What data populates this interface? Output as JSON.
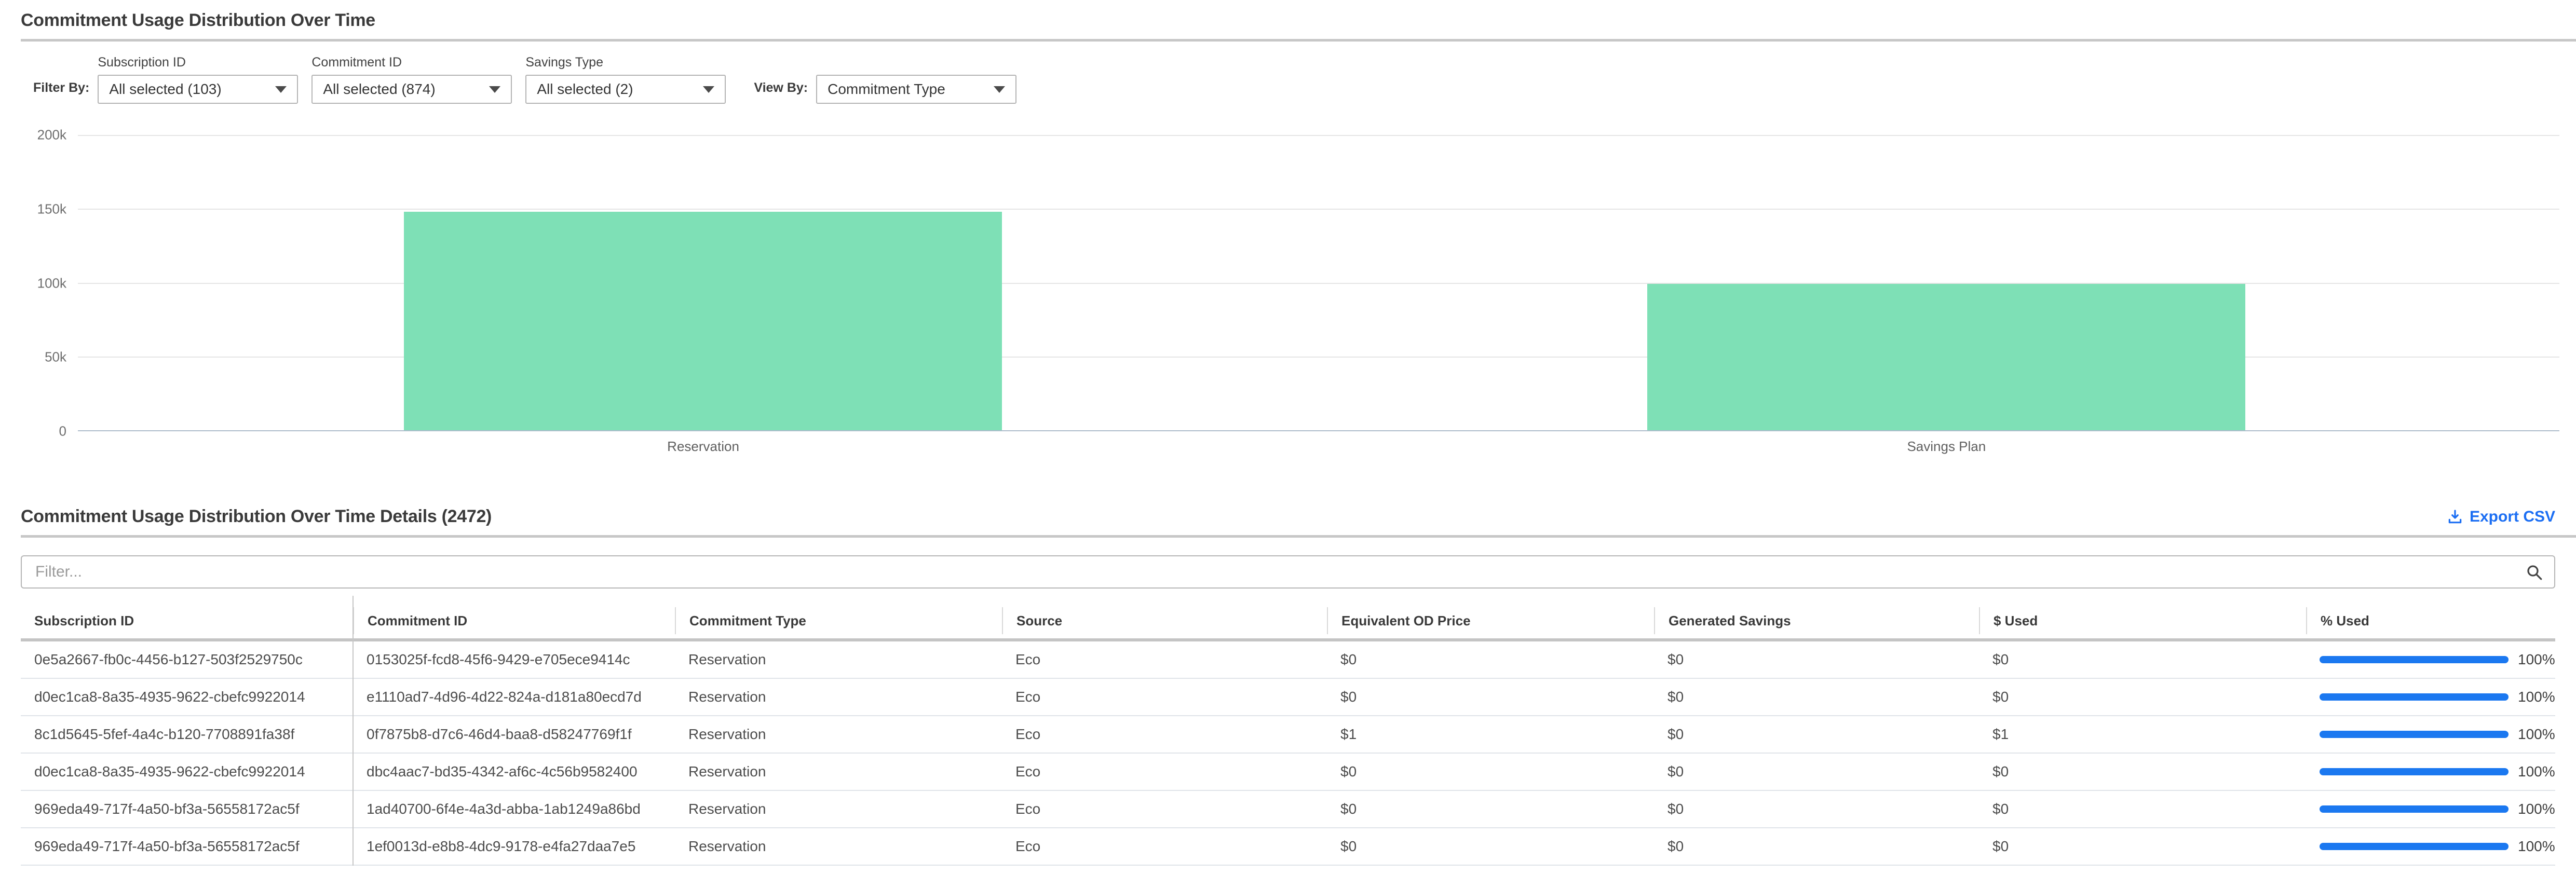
{
  "page": {
    "title": "Commitment Usage Distribution Over Time"
  },
  "filters": {
    "filter_by_label": "Filter By:",
    "view_by_label": "View By:",
    "dropdowns": [
      {
        "label": "Subscription ID",
        "value": "All selected (103)"
      },
      {
        "label": "Commitment ID",
        "value": "All selected (874)"
      },
      {
        "label": "Savings Type",
        "value": "All selected (2)"
      }
    ],
    "view_by": {
      "value": "Commitment Type"
    }
  },
  "chart_data": {
    "type": "bar",
    "categories": [
      "Reservation",
      "Savings Plan"
    ],
    "values": [
      148000,
      99000
    ],
    "title": "Commitment Usage Distribution Over Time",
    "xlabel": "",
    "ylabel": "",
    "ylim": [
      0,
      200000
    ],
    "yticks": [
      "200k",
      "150k",
      "100k",
      "50k",
      "0"
    ],
    "grid": true,
    "legend": "none",
    "bar_color": "#7ee0b6"
  },
  "details": {
    "title": "Commitment Usage Distribution Over Time Details (2472)",
    "export_label": "Export CSV",
    "filter_placeholder": "Filter...",
    "table": {
      "columns": [
        "Subscription ID",
        "Commitment ID",
        "Commitment Type",
        "Source",
        "Equivalent OD Price",
        "Generated Savings",
        "$ Used",
        "% Used"
      ],
      "rows": [
        {
          "sub": "0e5a2667-fb0c-4456-b127-503f2529750c",
          "cid": "0153025f-fcd8-45f6-9429-e705ece9414c",
          "type": "Reservation",
          "source": "Eco",
          "od": "$0",
          "savings": "$0",
          "used": "$0",
          "pct_label": "100%",
          "pct": 100
        },
        {
          "sub": "d0ec1ca8-8a35-4935-9622-cbefc9922014",
          "cid": "e1110ad7-4d96-4d22-824a-d181a80ecd7d",
          "type": "Reservation",
          "source": "Eco",
          "od": "$0",
          "savings": "$0",
          "used": "$0",
          "pct_label": "100%",
          "pct": 100
        },
        {
          "sub": "8c1d5645-5fef-4a4c-b120-7708891fa38f",
          "cid": "0f7875b8-d7c6-46d4-baa8-d58247769f1f",
          "type": "Reservation",
          "source": "Eco",
          "od": "$1",
          "savings": "$0",
          "used": "$1",
          "pct_label": "100%",
          "pct": 100
        },
        {
          "sub": "d0ec1ca8-8a35-4935-9622-cbefc9922014",
          "cid": "dbc4aac7-bd35-4342-af6c-4c56b9582400",
          "type": "Reservation",
          "source": "Eco",
          "od": "$0",
          "savings": "$0",
          "used": "$0",
          "pct_label": "100%",
          "pct": 100
        },
        {
          "sub": "969eda49-717f-4a50-bf3a-56558172ac5f",
          "cid": "1ad40700-6f4e-4a3d-abba-1ab1249a86bd",
          "type": "Reservation",
          "source": "Eco",
          "od": "$0",
          "savings": "$0",
          "used": "$0",
          "pct_label": "100%",
          "pct": 100
        },
        {
          "sub": "969eda49-717f-4a50-bf3a-56558172ac5f",
          "cid": "1ef0013d-e8b8-4dc9-9178-e4fa27daa7e5",
          "type": "Reservation",
          "source": "Eco",
          "od": "$0",
          "savings": "$0",
          "used": "$0",
          "pct_label": "100%",
          "pct": 100
        }
      ]
    }
  },
  "colors": {
    "accent_blue": "#1b6ef3",
    "progress_blue": "#1b78f0",
    "bar_green": "#7ee0b6",
    "divider_gray": "#c7c7c7"
  }
}
